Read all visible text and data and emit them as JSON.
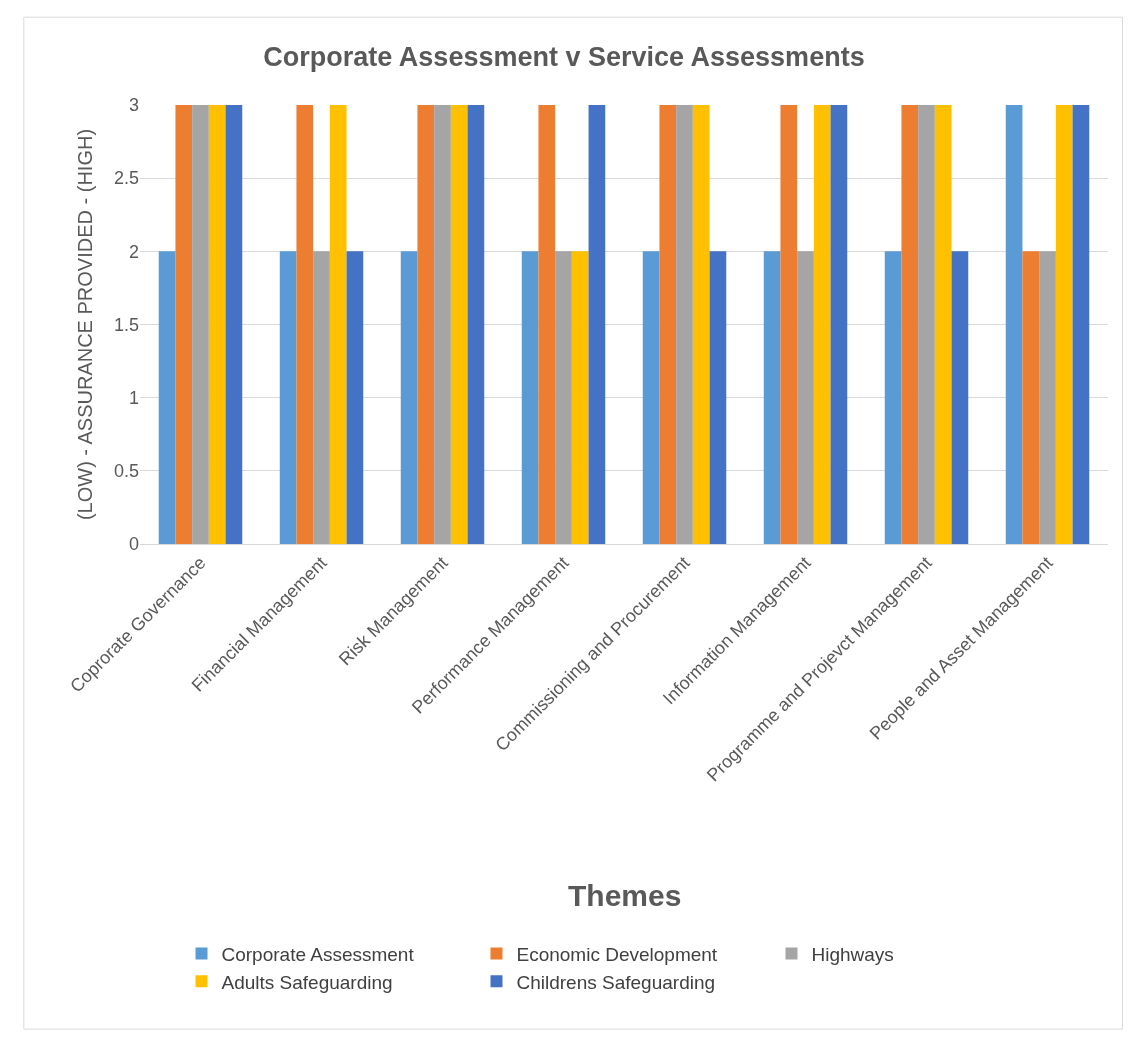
{
  "chart_data": {
    "type": "bar",
    "title": "Corporate Assessment v Service Assessments",
    "xlabel": "Themes",
    "ylabel": "(LOW) - ASSURANCE PROVIDED - (HIGH)",
    "categories": [
      "Coprorate Governance",
      "Financial Management",
      "Risk Management",
      "Performance Management",
      "Commissioning and Procurement",
      "Information Management",
      "Programme and Projevct Management",
      "People and Asset Management"
    ],
    "series": [
      {
        "name": "Corporate Assessment",
        "color": "#5b9bd5",
        "values": [
          2,
          2,
          2,
          2,
          2,
          2,
          2,
          3
        ]
      },
      {
        "name": "Economic Development",
        "color": "#ed7d31",
        "values": [
          3,
          3,
          3,
          3,
          3,
          3,
          3,
          2
        ]
      },
      {
        "name": "Highways",
        "color": "#a5a5a5",
        "values": [
          3,
          2,
          3,
          2,
          3,
          2,
          3,
          2
        ]
      },
      {
        "name": "Adults Safeguarding",
        "color": "#ffc000",
        "values": [
          3,
          3,
          3,
          2,
          3,
          3,
          3,
          3
        ]
      },
      {
        "name": "Childrens Safeguarding",
        "color": "#4472c4",
        "values": [
          3,
          2,
          3,
          3,
          2,
          3,
          2,
          3
        ]
      }
    ],
    "ylim": [
      0,
      3
    ],
    "yticks": [
      0,
      0.5,
      1,
      1.5,
      2,
      2.5,
      3
    ],
    "grid": "y",
    "legend": "bottom"
  }
}
